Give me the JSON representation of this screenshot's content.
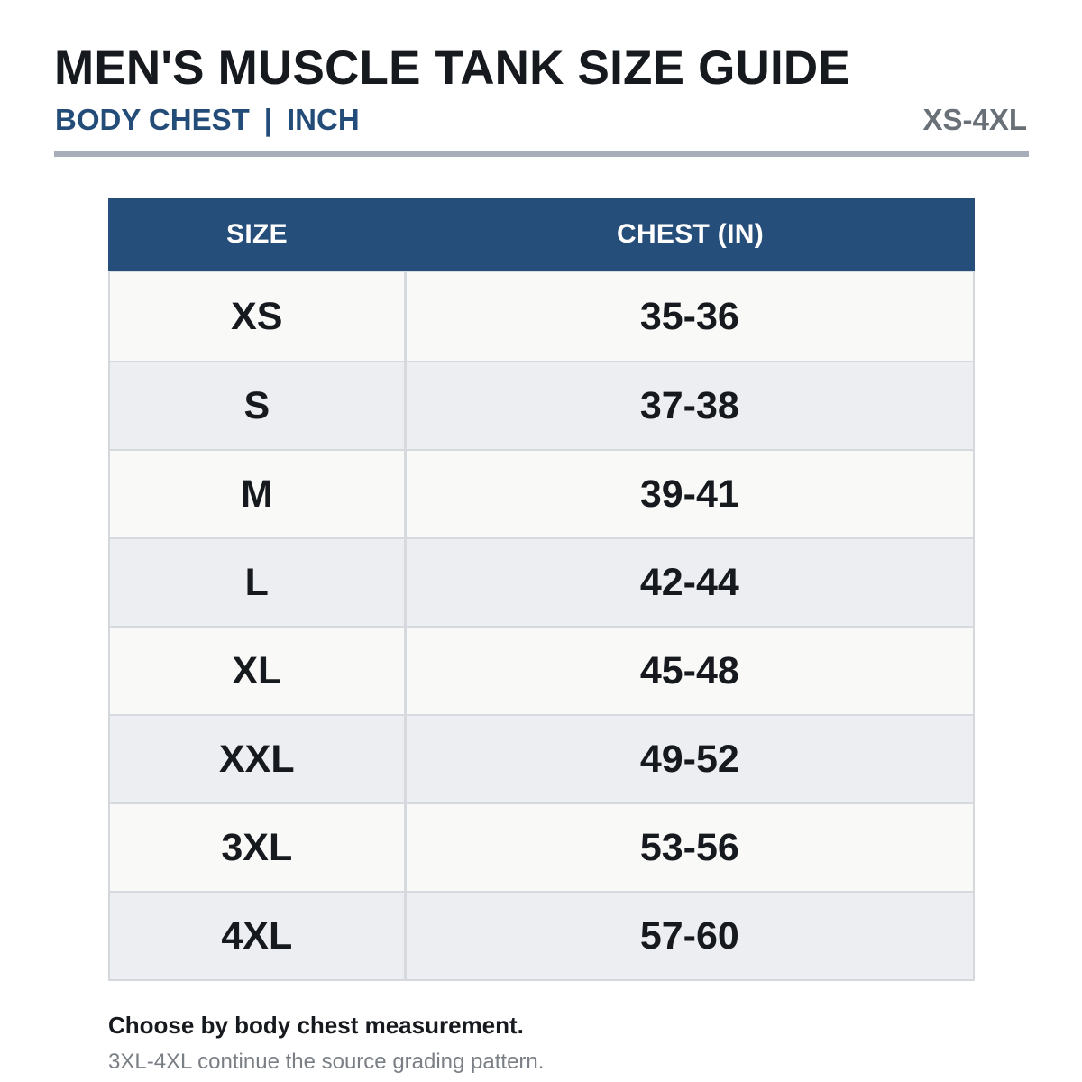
{
  "header": {
    "title": "MEN'S MUSCLE TANK SIZE GUIDE",
    "subtitle_left": "BODY CHEST",
    "subtitle_sep": "|",
    "subtitle_right": "INCH",
    "range": "XS-4XL"
  },
  "table": {
    "columns": [
      "SIZE",
      "CHEST (IN)"
    ],
    "rows": [
      {
        "size": "XS",
        "chest": "35-36"
      },
      {
        "size": "S",
        "chest": "37-38"
      },
      {
        "size": "M",
        "chest": "39-41"
      },
      {
        "size": "L",
        "chest": "42-44"
      },
      {
        "size": "XL",
        "chest": "45-48"
      },
      {
        "size": "XXL",
        "chest": "49-52"
      },
      {
        "size": "3XL",
        "chest": "53-56"
      },
      {
        "size": "4XL",
        "chest": "57-60"
      }
    ]
  },
  "notes": {
    "primary": "Choose by body chest measurement.",
    "secondary": "3XL-4XL continue the source grading pattern."
  },
  "colors": {
    "title": "#16191d",
    "accent": "#244c78",
    "header_bg": "#264e7a",
    "muted": "#6a7078",
    "rule": "#a7adb9"
  }
}
